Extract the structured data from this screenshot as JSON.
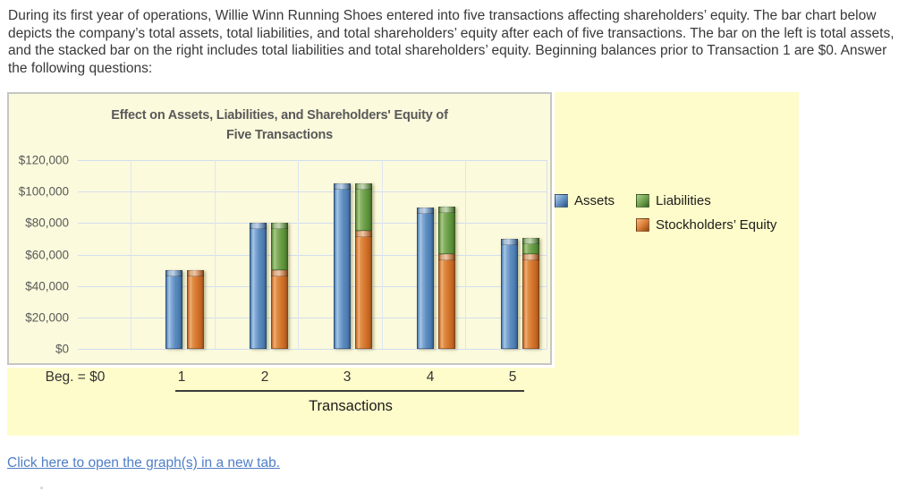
{
  "intro_text": "During its first year of operations, Willie Winn Running Shoes entered into five transactions affecting shareholders’ equity. The bar chart below depicts the company’s total assets, total liabilities, and total shareholders’ equity after each of five transactions. The bar on the left is total assets, and the stacked bar on the right includes total liabilities and total shareholders’ equity. Beginning balances prior to Transaction 1 are $0. Answer the following questions:",
  "chart_data": {
    "type": "bar",
    "title": "Effect on Assets, Liabilities, and Shareholders' Equity of Five Transactions",
    "title_lines": [
      "Effect on Assets, Liabilities, and Shareholders' Equity of",
      "Five Transactions"
    ],
    "categories": [
      "1",
      "2",
      "3",
      "4",
      "5"
    ],
    "series": [
      {
        "name": "Assets",
        "role": "left clustered bar",
        "color": "#5f8dc0",
        "values": [
          50000,
          80000,
          105000,
          90000,
          70000
        ]
      },
      {
        "name": "Liabilities",
        "role": "right stacked bar (top segment)",
        "color": "#6da04a",
        "values": [
          0,
          30000,
          30000,
          30000,
          10000
        ]
      },
      {
        "name": "Stockholders’ Equity",
        "role": "right stacked bar (bottom segment)",
        "color": "#d8782f",
        "values": [
          50000,
          50000,
          75000,
          60000,
          60000
        ]
      }
    ],
    "ylim": [
      0,
      120000
    ],
    "ytick_labels": [
      "$120,000",
      "$100,000",
      "$80,000",
      "$60,000",
      "$40,000",
      "$20,000",
      "$0"
    ],
    "xlabel": "Transactions",
    "beg_label": "Beg. = $0",
    "grid": true,
    "legend_position": "right"
  },
  "legend": {
    "assets": "Assets",
    "liabilities": "Liabilities",
    "equity": "Stockholders’ Equity"
  },
  "link": {
    "label": "Click here to open the graph(s) in a new tab."
  },
  "colors": {
    "board_background": "#fefcca",
    "chart_background": "#fbfadc",
    "gridline": "#d3deee",
    "title_text": "#595959",
    "link_blue": "#4f7ec7"
  }
}
